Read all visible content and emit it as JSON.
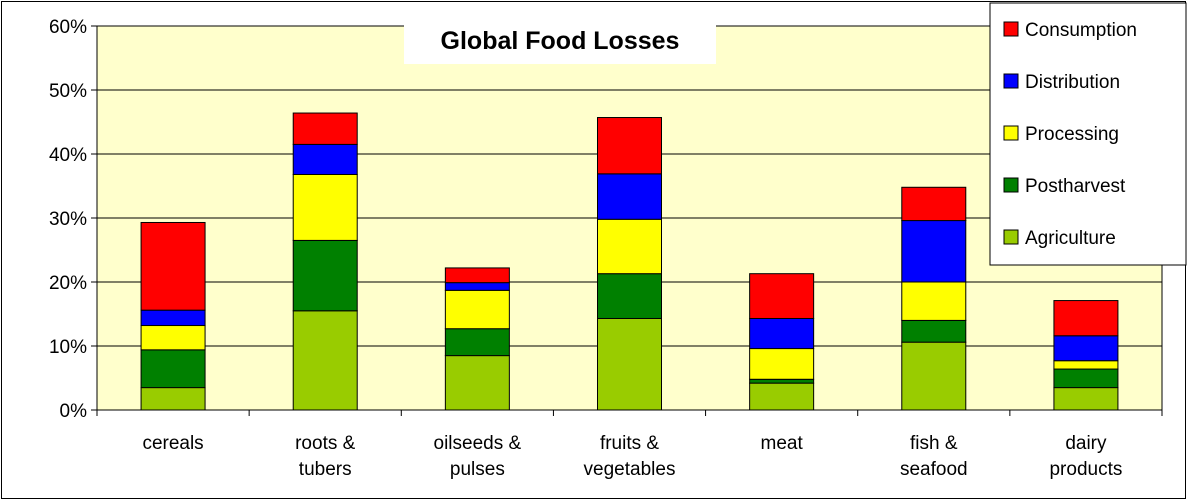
{
  "chart_data": {
    "type": "bar",
    "stacked": true,
    "title": "Global Food Losses",
    "categories": [
      [
        "cereals"
      ],
      [
        "roots &",
        "tubers"
      ],
      [
        "oilseeds &",
        "pulses"
      ],
      [
        "fruits &",
        "vegetables"
      ],
      [
        "meat"
      ],
      [
        "fish &",
        "seafood"
      ],
      [
        "dairy",
        "products"
      ]
    ],
    "series": [
      {
        "name": "Agriculture",
        "color": "#99CC00",
        "values": [
          3.5,
          15.5,
          8.5,
          14.3,
          4.2,
          10.6,
          3.5
        ]
      },
      {
        "name": "Postharvest",
        "color": "#008000",
        "values": [
          5.9,
          11.0,
          4.2,
          7.0,
          0.6,
          3.4,
          2.9
        ]
      },
      {
        "name": "Processing",
        "color": "#FFFF00",
        "values": [
          3.8,
          10.3,
          6.0,
          8.5,
          4.8,
          6.0,
          1.3
        ]
      },
      {
        "name": "Distribution",
        "color": "#0000FF",
        "values": [
          2.4,
          4.7,
          1.2,
          7.1,
          4.7,
          9.6,
          3.9
        ]
      },
      {
        "name": "Consumption",
        "color": "#FF0000",
        "values": [
          13.7,
          4.9,
          2.3,
          8.8,
          7.0,
          5.2,
          5.5
        ]
      }
    ],
    "ylim": [
      0,
      60
    ],
    "yticks": [
      "0%",
      "10%",
      "20%",
      "30%",
      "40%",
      "50%",
      "60%"
    ],
    "ytick_values": [
      0,
      10,
      20,
      30,
      40,
      50,
      60
    ],
    "plot_background": "#FFFFCC",
    "grid": true,
    "legend_placement": "top-right",
    "legend_order": [
      "Consumption",
      "Distribution",
      "Processing",
      "Postharvest",
      "Agriculture"
    ]
  }
}
